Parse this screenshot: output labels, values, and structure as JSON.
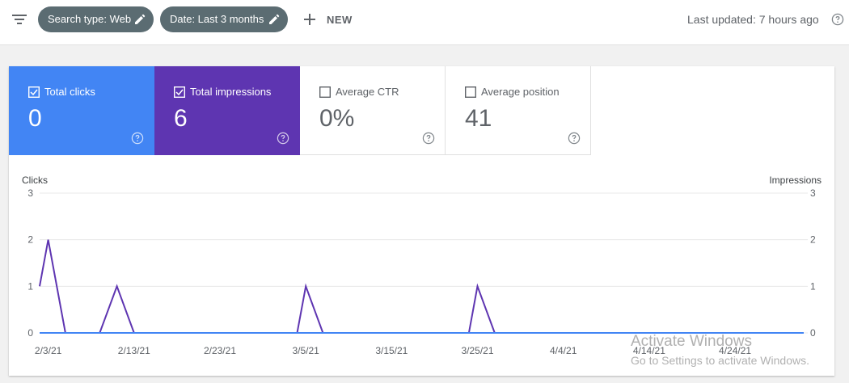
{
  "toolbar": {
    "chips": [
      {
        "label": "Search type: Web"
      },
      {
        "label": "Date: Last 3 months"
      }
    ],
    "new_label": "NEW",
    "last_updated": "Last updated: 7 hours ago"
  },
  "metrics": [
    {
      "label": "Total clicks",
      "value": "0",
      "checked": true,
      "color": "#4285f4"
    },
    {
      "label": "Total impressions",
      "value": "6",
      "checked": true,
      "color": "#5e35b1"
    },
    {
      "label": "Average CTR",
      "value": "0%",
      "checked": false
    },
    {
      "label": "Average position",
      "value": "41",
      "checked": false
    }
  ],
  "chart_data": {
    "type": "line",
    "left_axis_label": "Clicks",
    "right_axis_label": "Impressions",
    "ylim": [
      0,
      3
    ],
    "y_ticks": [
      "0",
      "1",
      "2",
      "3"
    ],
    "x_tick_labels": [
      "2/3/21",
      "2/13/21",
      "2/23/21",
      "3/5/21",
      "3/15/21",
      "3/25/21",
      "4/4/21",
      "4/14/21",
      "4/24/21"
    ],
    "x_range": [
      "2/2/21",
      "5/2/21"
    ],
    "grid": true,
    "series": [
      {
        "name": "Clicks",
        "axis": "left",
        "color": "#4285f4",
        "points": [
          [
            "2/2/21",
            0
          ],
          [
            "5/2/21",
            0
          ]
        ]
      },
      {
        "name": "Impressions",
        "axis": "right",
        "color": "#5e35b1",
        "points": [
          [
            "2/2/21",
            1
          ],
          [
            "2/3/21",
            2
          ],
          [
            "2/5/21",
            0
          ],
          [
            "2/9/21",
            0
          ],
          [
            "2/11/21",
            1
          ],
          [
            "2/13/21",
            0
          ],
          [
            "3/4/21",
            0
          ],
          [
            "3/5/21",
            1
          ],
          [
            "3/7/21",
            0
          ],
          [
            "3/24/21",
            0
          ],
          [
            "3/25/21",
            1
          ],
          [
            "3/27/21",
            0
          ],
          [
            "5/2/21",
            0
          ]
        ]
      }
    ]
  },
  "watermark": {
    "line1": "Activate Windows",
    "line2": "Go to Settings to activate Windows."
  }
}
